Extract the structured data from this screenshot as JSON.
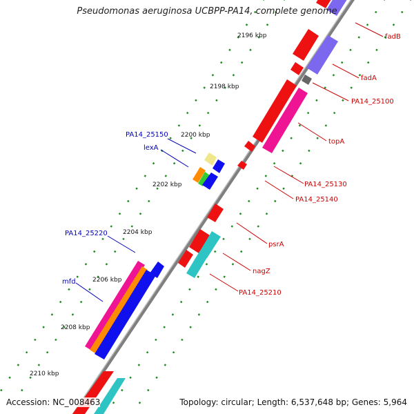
{
  "title": "Pseudomonas aeruginosa UCBPP-PA14, complete genome",
  "footer": {
    "accession": "Accession: NC_008463",
    "summary": "Topology: circular; Length: 6,537,648 bp; Genes: 5,964"
  },
  "scale_labels": [
    "2196 kbp",
    "2198 kbp",
    "2200 kbp",
    "2202 kbp",
    "2204 kbp",
    "2206 kbp",
    "2208 kbp",
    "2210 kbp"
  ],
  "colors": {
    "forward_label": "#cc0000",
    "reverse_label": "#0000bb",
    "backbone": "#808080",
    "tick": "#1f8a1f"
  },
  "gene_labels_right": [
    {
      "text": "fadB"
    },
    {
      "text": "fadA"
    },
    {
      "text": "PA14_25100"
    },
    {
      "text": "topA"
    },
    {
      "text": "PA14_25130"
    },
    {
      "text": "PA14_25140"
    },
    {
      "text": "psrA"
    },
    {
      "text": "nagZ"
    },
    {
      "text": "PA14_25210"
    }
  ],
  "gene_labels_left": [
    {
      "text": "PA14_25150"
    },
    {
      "text": "lexA"
    },
    {
      "text": "PA14_25220"
    },
    {
      "text": "mfd"
    }
  ]
}
